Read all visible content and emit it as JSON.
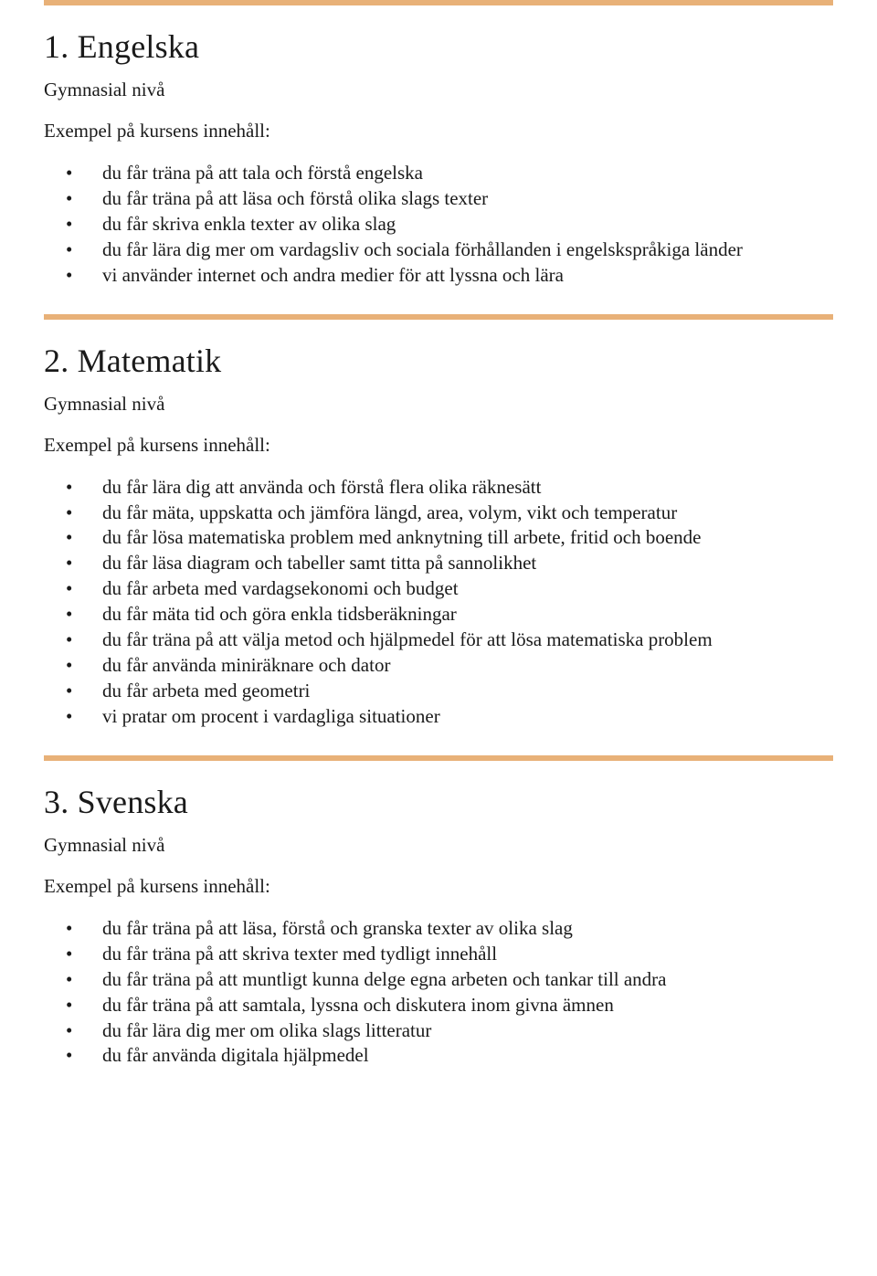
{
  "colors": {
    "accent": "#e8b178",
    "text": "#1a1a1a",
    "background": "#ffffff"
  },
  "sections": [
    {
      "title": "1. Engelska",
      "subtitle": "Gymnasial nivå",
      "subhead": "Exempel på kursens innehåll:",
      "items": [
        "du får träna på att tala och förstå engelska",
        "du får träna på att läsa och förstå olika slags texter",
        "du får skriva enkla texter av olika slag",
        "du får lära dig mer om vardagsliv och sociala förhållanden i engelskspråkiga länder",
        "vi använder internet och andra medier för att lyssna och lära"
      ]
    },
    {
      "title": "2. Matematik",
      "subtitle": "Gymnasial nivå",
      "subhead": "Exempel på kursens innehåll:",
      "items": [
        "du får lära dig att använda och förstå flera olika räknesätt",
        "du får mäta, uppskatta och jämföra längd, area, volym, vikt och temperatur",
        "du får lösa matematiska problem med anknytning till arbete, fritid och boende",
        "du får läsa diagram och tabeller samt titta på sannolikhet",
        "du får arbeta med vardagsekonomi och budget",
        "du får mäta tid och göra enkla tidsberäkningar",
        "du får träna på att välja metod och hjälpmedel för att lösa matematiska problem",
        "du får använda miniräknare och dator",
        "du får arbeta med geometri",
        "vi pratar om procent i vardagliga situationer"
      ]
    },
    {
      "title": "3.  Svenska",
      "subtitle": "Gymnasial nivå",
      "subhead": "Exempel på kursens innehåll:",
      "items": [
        "du får träna på att läsa, förstå och granska texter av olika slag",
        "du får träna på att skriva texter med tydligt innehåll",
        "du får träna på att muntligt kunna delge egna arbeten och tankar till andra",
        "du får träna på att samtala, lyssna och diskutera inom givna ämnen",
        "du får lära dig mer om olika slags litteratur",
        "du får använda digitala hjälpmedel"
      ]
    }
  ]
}
